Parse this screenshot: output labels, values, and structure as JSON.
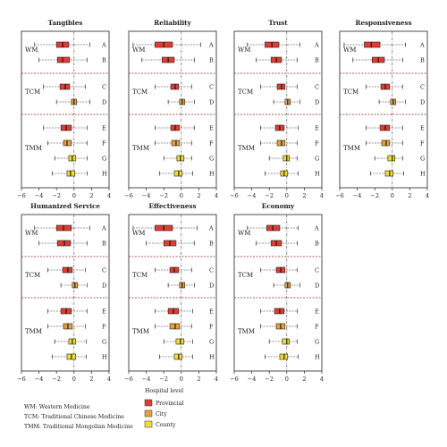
{
  "chart_data": {
    "type": "boxplot",
    "x_ticks": [
      -6,
      -4,
      -2,
      0,
      2,
      4
    ],
    "xlim": [
      -6,
      4
    ],
    "row_labels": [
      "A",
      "B",
      "C",
      "D",
      "E",
      "F",
      "G",
      "H"
    ],
    "groups": [
      {
        "name": "WM",
        "rows": [
          "A",
          "B"
        ]
      },
      {
        "name": "TCM",
        "rows": [
          "C",
          "D"
        ]
      },
      {
        "name": "TMM",
        "rows": [
          "E",
          "F",
          "G",
          "H"
        ]
      }
    ],
    "row_level": [
      "Provincial",
      "Provincial",
      "Provincial",
      "City",
      "Provincial",
      "City",
      "County",
      "County"
    ],
    "panels": [
      {
        "title": "Tangibles",
        "rows": [
          {
            "min": -4.5,
            "q1": -2.0,
            "median": -1.3,
            "q3": -0.6,
            "max": 1.8
          },
          {
            "min": -4.0,
            "q1": -1.9,
            "median": -1.3,
            "q3": -0.5,
            "max": 1.5
          },
          {
            "min": -3.5,
            "q1": -1.6,
            "median": -1.0,
            "q3": -0.5,
            "max": 1.3
          },
          {
            "min": -2.0,
            "q1": -0.3,
            "median": 0.0,
            "q3": 0.3,
            "max": 1.8
          },
          {
            "min": -3.5,
            "q1": -1.5,
            "median": -0.9,
            "q3": -0.3,
            "max": 1.5
          },
          {
            "min": -3.0,
            "q1": -1.2,
            "median": -0.8,
            "q3": -0.3,
            "max": 1.5
          },
          {
            "min": -2.2,
            "q1": -0.6,
            "median": -0.2,
            "q3": 0.2,
            "max": 1.5
          },
          {
            "min": -2.5,
            "q1": -0.8,
            "median": -0.4,
            "q3": 0.1,
            "max": 1.5
          }
        ]
      },
      {
        "title": "Reliability",
        "rows": [
          {
            "min": -5.5,
            "q1": -3.0,
            "median": -2.0,
            "q3": -1.0,
            "max": 2.2
          },
          {
            "min": -4.5,
            "q1": -2.2,
            "median": -1.5,
            "q3": -0.8,
            "max": 1.5
          },
          {
            "min": -3.0,
            "q1": -1.2,
            "median": -0.7,
            "q3": -0.3,
            "max": 1.2
          },
          {
            "min": -1.5,
            "q1": -0.2,
            "median": 0.1,
            "q3": 0.4,
            "max": 1.5
          },
          {
            "min": -3.0,
            "q1": -1.2,
            "median": -0.7,
            "q3": -0.2,
            "max": 1.5
          },
          {
            "min": -3.0,
            "q1": -1.1,
            "median": -0.6,
            "q3": -0.2,
            "max": 1.2
          },
          {
            "min": -2.0,
            "q1": -0.5,
            "median": -0.1,
            "q3": 0.3,
            "max": 1.2
          },
          {
            "min": -2.5,
            "q1": -0.8,
            "median": -0.3,
            "q3": 0.1,
            "max": 1.3
          }
        ]
      },
      {
        "title": "Trust",
        "rows": [
          {
            "min": -4.5,
            "q1": -2.5,
            "median": -1.7,
            "q3": -0.9,
            "max": 1.5
          },
          {
            "min": -3.5,
            "q1": -1.8,
            "median": -1.2,
            "q3": -0.6,
            "max": 1.2
          },
          {
            "min": -3.0,
            "q1": -1.1,
            "median": -0.6,
            "q3": -0.2,
            "max": 1.2
          },
          {
            "min": -1.5,
            "q1": -0.2,
            "median": 0.1,
            "q3": 0.4,
            "max": 1.5
          },
          {
            "min": -3.0,
            "q1": -1.3,
            "median": -0.8,
            "q3": -0.3,
            "max": 1.3
          },
          {
            "min": -3.0,
            "q1": -1.1,
            "median": -0.6,
            "q3": -0.2,
            "max": 1.2
          },
          {
            "min": -2.0,
            "q1": -0.4,
            "median": 0.0,
            "q3": 0.3,
            "max": 1.2
          },
          {
            "min": -2.5,
            "q1": -0.7,
            "median": -0.3,
            "q3": 0.1,
            "max": 1.3
          }
        ]
      },
      {
        "title": "Responsiveness",
        "rows": [
          {
            "min": -5.5,
            "q1": -3.2,
            "median": -2.4,
            "q3": -1.4,
            "max": 1.5
          },
          {
            "min": -4.5,
            "q1": -2.3,
            "median": -1.6,
            "q3": -0.9,
            "max": 1.2
          },
          {
            "min": -3.0,
            "q1": -1.3,
            "median": -0.8,
            "q3": -0.3,
            "max": 1.2
          },
          {
            "min": -1.5,
            "q1": -0.2,
            "median": 0.1,
            "q3": 0.4,
            "max": 1.5
          },
          {
            "min": -3.0,
            "q1": -1.4,
            "median": -0.8,
            "q3": -0.3,
            "max": 1.2
          },
          {
            "min": -3.0,
            "q1": -1.2,
            "median": -0.7,
            "q3": -0.3,
            "max": 1.2
          },
          {
            "min": -2.0,
            "q1": -0.5,
            "median": 0.0,
            "q3": 0.3,
            "max": 1.2
          },
          {
            "min": -2.5,
            "q1": -0.8,
            "median": -0.3,
            "q3": 0.1,
            "max": 1.3
          }
        ]
      },
      {
        "title": "Humanized Service",
        "rows": [
          {
            "min": -4.5,
            "q1": -2.0,
            "median": -1.2,
            "q3": -0.3,
            "max": 1.8
          },
          {
            "min": -4.0,
            "q1": -1.9,
            "median": -1.1,
            "q3": -0.4,
            "max": 1.5
          },
          {
            "min": -3.0,
            "q1": -1.3,
            "median": -0.7,
            "q3": -0.2,
            "max": 1.3
          },
          {
            "min": -1.5,
            "q1": -0.2,
            "median": 0.1,
            "q3": 0.4,
            "max": 1.5
          },
          {
            "min": -3.0,
            "q1": -1.5,
            "median": -0.9,
            "q3": -0.3,
            "max": 1.5
          },
          {
            "min": -3.0,
            "q1": -1.2,
            "median": -0.7,
            "q3": -0.2,
            "max": 1.3
          },
          {
            "min": -2.2,
            "q1": -0.6,
            "median": -0.2,
            "q3": 0.2,
            "max": 1.4
          },
          {
            "min": -2.5,
            "q1": -0.8,
            "median": -0.3,
            "q3": 0.2,
            "max": 1.4
          }
        ]
      },
      {
        "title": "Effectiveness",
        "rows": [
          {
            "min": -5.5,
            "q1": -3.0,
            "median": -2.0,
            "q3": -1.0,
            "max": 1.8
          },
          {
            "min": -4.0,
            "q1": -2.0,
            "median": -1.3,
            "q3": -0.6,
            "max": 1.5
          },
          {
            "min": -3.0,
            "q1": -1.3,
            "median": -0.8,
            "q3": -0.3,
            "max": 1.2
          },
          {
            "min": -1.5,
            "q1": -0.2,
            "median": 0.1,
            "q3": 0.4,
            "max": 1.5
          },
          {
            "min": -3.0,
            "q1": -1.5,
            "median": -0.9,
            "q3": -0.3,
            "max": 1.3
          },
          {
            "min": -3.0,
            "q1": -1.3,
            "median": -0.7,
            "q3": -0.2,
            "max": 1.2
          },
          {
            "min": -2.0,
            "q1": -0.6,
            "median": -0.1,
            "q3": 0.3,
            "max": 1.3
          },
          {
            "min": -2.5,
            "q1": -0.8,
            "median": -0.3,
            "q3": 0.1,
            "max": 1.3
          }
        ]
      },
      {
        "title": "Economy",
        "rows": [
          {
            "min": -4.5,
            "q1": -2.3,
            "median": -1.6,
            "q3": -0.8,
            "max": 1.3
          },
          {
            "min": -3.5,
            "q1": -1.8,
            "median": -1.2,
            "q3": -0.6,
            "max": 1.2
          },
          {
            "min": -3.0,
            "q1": -1.2,
            "median": -0.7,
            "q3": -0.2,
            "max": 1.2
          },
          {
            "min": -1.5,
            "q1": -0.2,
            "median": 0.1,
            "q3": 0.4,
            "max": 1.5
          },
          {
            "min": -3.0,
            "q1": -1.4,
            "median": -0.8,
            "q3": -0.3,
            "max": 1.2
          },
          {
            "min": -3.0,
            "q1": -1.2,
            "median": -0.7,
            "q3": -0.2,
            "max": 1.2
          },
          {
            "min": -2.0,
            "q1": -0.5,
            "median": 0.0,
            "q3": 0.3,
            "max": 1.2
          },
          {
            "min": -2.5,
            "q1": -0.8,
            "median": -0.3,
            "q3": 0.1,
            "max": 1.3
          }
        ]
      }
    ]
  },
  "legend": {
    "title": "Hospital level",
    "items": [
      {
        "label": "Provincial",
        "color": "#e03c31"
      },
      {
        "label": "City",
        "color": "#e8a13c"
      },
      {
        "label": "County",
        "color": "#f2dd2e"
      }
    ]
  },
  "abbreviations": [
    "WM: Western Medicine",
    "TCM: Traditional Chinese Medicine",
    "TMM: Traditional Mongolian Medicine"
  ],
  "colors": {
    "separator": "#8b2a2a",
    "zero_line": "#444444",
    "whisker": "#333333"
  }
}
